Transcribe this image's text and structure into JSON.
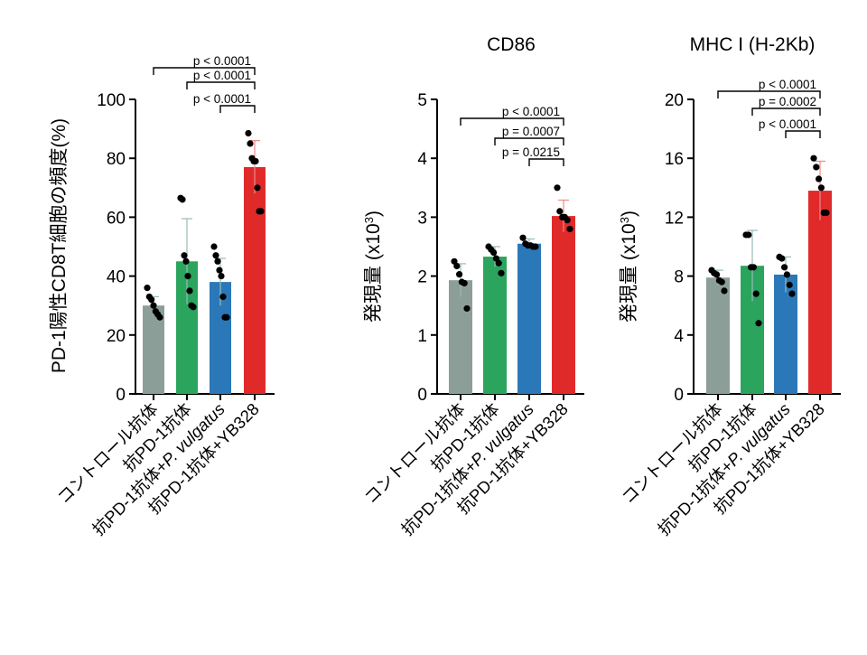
{
  "chart_data": [
    {
      "type": "bar",
      "title": "",
      "ylabel": "PD-1陽性CD8T細胞の頻度(%)",
      "ylim": [
        0,
        100
      ],
      "yticks": [
        "0",
        "20",
        "40",
        "60",
        "80",
        "100"
      ],
      "categories": [
        "コントロール抗体",
        "抗PD-1抗体",
        "抗PD-1抗体+P. vulgatus",
        "抗PD-1抗体+YB328"
      ],
      "values": [
        30,
        45,
        38,
        77
      ],
      "errors": [
        3,
        14.5,
        8,
        9
      ],
      "points": [
        [
          36,
          33,
          32,
          30,
          28,
          27,
          26
        ],
        [
          66.5,
          66,
          47,
          45,
          40,
          35,
          30,
          29.5
        ],
        [
          50,
          47,
          45,
          42,
          40,
          33,
          26,
          26
        ],
        [
          88.5,
          85,
          80,
          79,
          79,
          70,
          62,
          62
        ]
      ],
      "colors": [
        "#8c9e98",
        "#2ba45d",
        "#2b78b8",
        "#e02a2a"
      ],
      "significance": [
        {
          "from": 0,
          "to": 3,
          "label": "p < 0.0001"
        },
        {
          "from": 1,
          "to": 3,
          "label": "p < 0.0001"
        },
        {
          "from": 2,
          "to": 3,
          "label": "p < 0.0001"
        }
      ]
    },
    {
      "type": "bar",
      "title": "CD86",
      "ylabel": "発現量 (x10",
      "ylabel_sup": "3",
      "ylabel_end": ")",
      "ylim": [
        0,
        5
      ],
      "yticks": [
        "0",
        "1",
        "2",
        "3",
        "4",
        "5"
      ],
      "categories": [
        "コントロール抗体",
        "抗PD-1抗体",
        "抗PD-1抗体+P. vulgatus",
        "抗PD-1抗体+YB328"
      ],
      "values": [
        1.93,
        2.33,
        2.55,
        3.02
      ],
      "errors": [
        0.28,
        0.17,
        0.08,
        0.27
      ],
      "points": [
        [
          2.25,
          2.17,
          2.03,
          1.9,
          1.88,
          1.45
        ],
        [
          2.5,
          2.45,
          2.4,
          2.3,
          2.22,
          2.05
        ],
        [
          2.65,
          2.55,
          2.52,
          2.52,
          2.5,
          2.5
        ],
        [
          3.5,
          3.1,
          3.0,
          3.0,
          2.95,
          2.8
        ]
      ],
      "colors": [
        "#8c9e98",
        "#2ba45d",
        "#2b78b8",
        "#e02a2a"
      ],
      "significance": [
        {
          "from": 0,
          "to": 3,
          "label": "p < 0.0001"
        },
        {
          "from": 1,
          "to": 3,
          "label": "p = 0.0007"
        },
        {
          "from": 2,
          "to": 3,
          "label": "p = 0.0215"
        }
      ]
    },
    {
      "type": "bar",
      "title": "MHC I (H-2Kb)",
      "ylabel": "発現量 (x10",
      "ylabel_sup": "3",
      "ylabel_end": ")",
      "ylim": [
        0,
        20
      ],
      "yticks": [
        "0",
        "4",
        "8",
        "12",
        "16",
        "20"
      ],
      "categories": [
        "コントロール抗体",
        "抗PD-1抗体",
        "抗PD-1抗体+P. vulgatus",
        "抗PD-1抗体+YB328"
      ],
      "values": [
        7.9,
        8.7,
        8.1,
        13.8
      ],
      "errors": [
        0.5,
        2.4,
        1.2,
        2.0
      ],
      "points": [
        [
          8.4,
          8.2,
          8.1,
          7.7,
          7.6,
          7.0
        ],
        [
          10.8,
          10.8,
          8.6,
          8.6,
          6.8,
          4.8
        ],
        [
          9.3,
          9.2,
          8.6,
          8.1,
          7.4,
          6.8
        ],
        [
          16.0,
          15.4,
          14.6,
          14.0,
          12.3,
          12.3
        ]
      ],
      "colors": [
        "#8c9e98",
        "#2ba45d",
        "#2b78b8",
        "#e02a2a"
      ],
      "significance": [
        {
          "from": 0,
          "to": 3,
          "label": "p < 0.0001"
        },
        {
          "from": 1,
          "to": 3,
          "label": "p = 0.0002"
        },
        {
          "from": 2,
          "to": 3,
          "label": "p < 0.0001"
        }
      ]
    }
  ]
}
